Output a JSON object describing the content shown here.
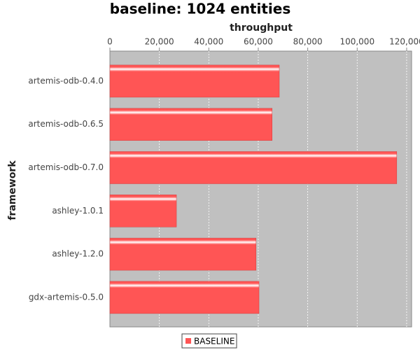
{
  "chart_data": {
    "type": "hbar",
    "title": "baseline: 1024 entities",
    "x_label": "throughput",
    "y_label": "framework",
    "categories": [
      "artemis-odb-0.4.0",
      "artemis-odb-0.6.5",
      "artemis-odb-0.7.0",
      "ashley-1.0.1",
      "ashley-1.2.0",
      "gdx-artemis-0.5.0"
    ],
    "series": [
      {
        "name": "BASELINE",
        "color": "#ff5555",
        "values": [
          68500,
          65600,
          116000,
          26900,
          59100,
          60300
        ]
      }
    ],
    "xlim": [
      0,
      122000
    ],
    "xticks": [
      0,
      {
        "value": 20000,
        "label": "20,000"
      },
      {
        "value": 40000,
        "label": "40,000"
      },
      {
        "value": 60000,
        "label": "60,000"
      },
      {
        "value": 80000,
        "label": "80,000"
      },
      {
        "value": 100000,
        "label": "100,000"
      },
      {
        "value": 120000,
        "label": "120,000"
      }
    ],
    "grid": true
  }
}
